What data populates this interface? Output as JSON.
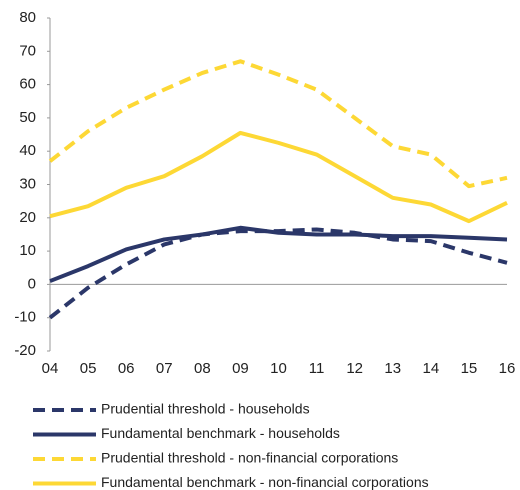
{
  "chart_data": {
    "type": "line",
    "categories": [
      "04",
      "05",
      "06",
      "07",
      "08",
      "09",
      "10",
      "11",
      "12",
      "13",
      "14",
      "15",
      "16"
    ],
    "series": [
      {
        "name": "Prudential threshold - households",
        "color": "#2b3769",
        "dashed": true,
        "values": [
          -10,
          -1,
          6,
          12,
          15,
          16,
          16,
          16.5,
          15.5,
          13.5,
          13,
          9.5,
          6.5
        ]
      },
      {
        "name": "Fundamental benchmark - households",
        "color": "#2b3769",
        "dashed": false,
        "values": [
          1,
          5.5,
          10.5,
          13.5,
          15,
          17,
          15.5,
          15,
          15,
          14.5,
          14.5,
          14,
          13.5
        ]
      },
      {
        "name": "Prudential threshold - non-financial corporations",
        "color": "#fdd835",
        "dashed": true,
        "values": [
          37,
          46,
          53,
          58.5,
          63.5,
          67,
          63,
          58.5,
          50,
          41.5,
          39,
          29.5,
          32
        ]
      },
      {
        "name": "Fundamental benchmark - non-financial corporations",
        "color": "#fdd835",
        "dashed": false,
        "values": [
          20.5,
          23.5,
          29,
          32.5,
          38.5,
          45.5,
          42.5,
          39,
          32.5,
          26,
          24,
          19,
          24.5
        ]
      }
    ],
    "ylim": [
      -20,
      80
    ],
    "yticks": [
      -20,
      -10,
      0,
      10,
      20,
      30,
      40,
      50,
      60,
      70,
      80
    ]
  }
}
